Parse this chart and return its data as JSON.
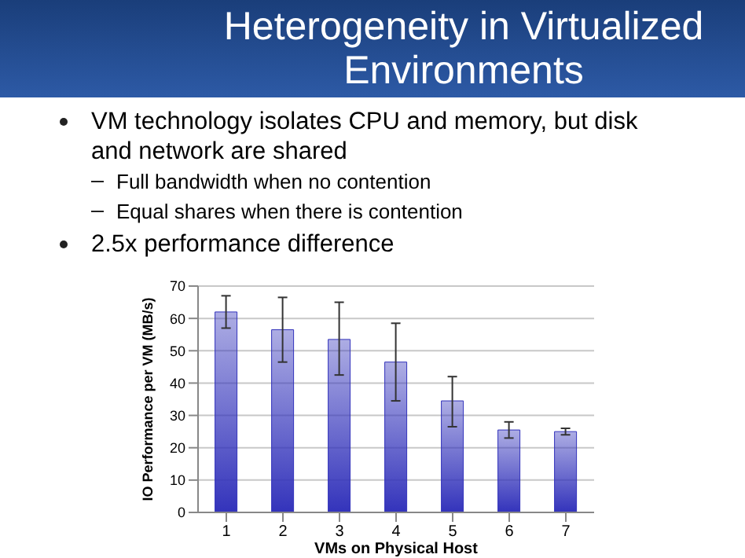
{
  "chart_data": {
    "type": "bar",
    "title": "Heterogeneity in Virtualized Environments",
    "annotations": [
      "VM technology isolates CPU and memory, but disk and network are shared",
      "Full bandwidth when no contention",
      "Equal shares when there is contention",
      "2.5x performance difference"
    ],
    "xlabel": "VMs on Physical Host",
    "ylabel": "IO Performance per VM (MB/s)",
    "categories": [
      "1",
      "2",
      "3",
      "4",
      "5",
      "6",
      "7"
    ],
    "values": [
      62,
      56.5,
      53.5,
      46.5,
      34.5,
      25.5,
      25
    ],
    "errors": [
      [
        57,
        67
      ],
      [
        46.5,
        66.5
      ],
      [
        42.5,
        65
      ],
      [
        34.5,
        58.5
      ],
      [
        26.5,
        42
      ],
      [
        23,
        28
      ],
      [
        24,
        26
      ]
    ],
    "color": "#3333bb",
    "ylim": [
      0,
      70
    ],
    "yticks": [
      0,
      10,
      20,
      30,
      40,
      50,
      60,
      70
    ],
    "grid": "y"
  }
}
